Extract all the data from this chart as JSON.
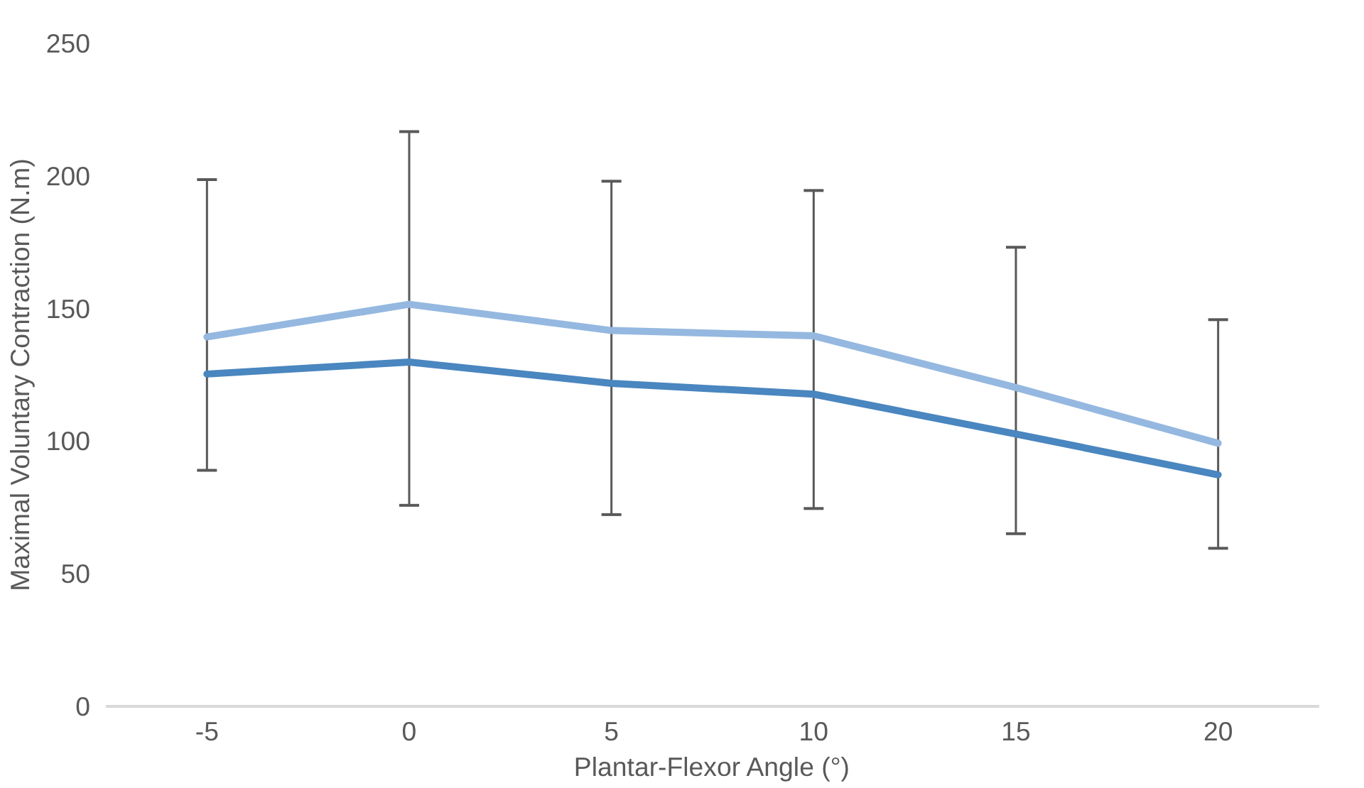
{
  "chart_data": {
    "type": "line",
    "xlabel": "Plantar-Flexor Angle (°)",
    "ylabel": "Maximal Voluntary Contraction (N.m)",
    "categories": [
      "-5",
      "0",
      "5",
      "10",
      "15",
      "20"
    ],
    "ylim": [
      0,
      250
    ],
    "yticks": [
      0,
      50,
      100,
      150,
      200,
      250
    ],
    "grid": false,
    "marker": "none",
    "line_style": "solid",
    "series": [
      {
        "color": "#95b8e0",
        "values": [
          139.3,
          151.6,
          141.7,
          139.7,
          120.2,
          99.2
        ],
        "errors": [
          [
            89,
            198.6
          ],
          [
            75.8,
            216.7
          ],
          [
            72.3,
            198
          ],
          [
            74.6,
            194.5
          ],
          [
            65.1,
            173.1
          ],
          [
            59.6,
            145.8
          ]
        ]
      },
      {
        "color": "#4a86bf",
        "values": [
          125.3,
          129.8,
          121.8,
          117.7,
          102.7,
          87.3
        ]
      }
    ]
  }
}
